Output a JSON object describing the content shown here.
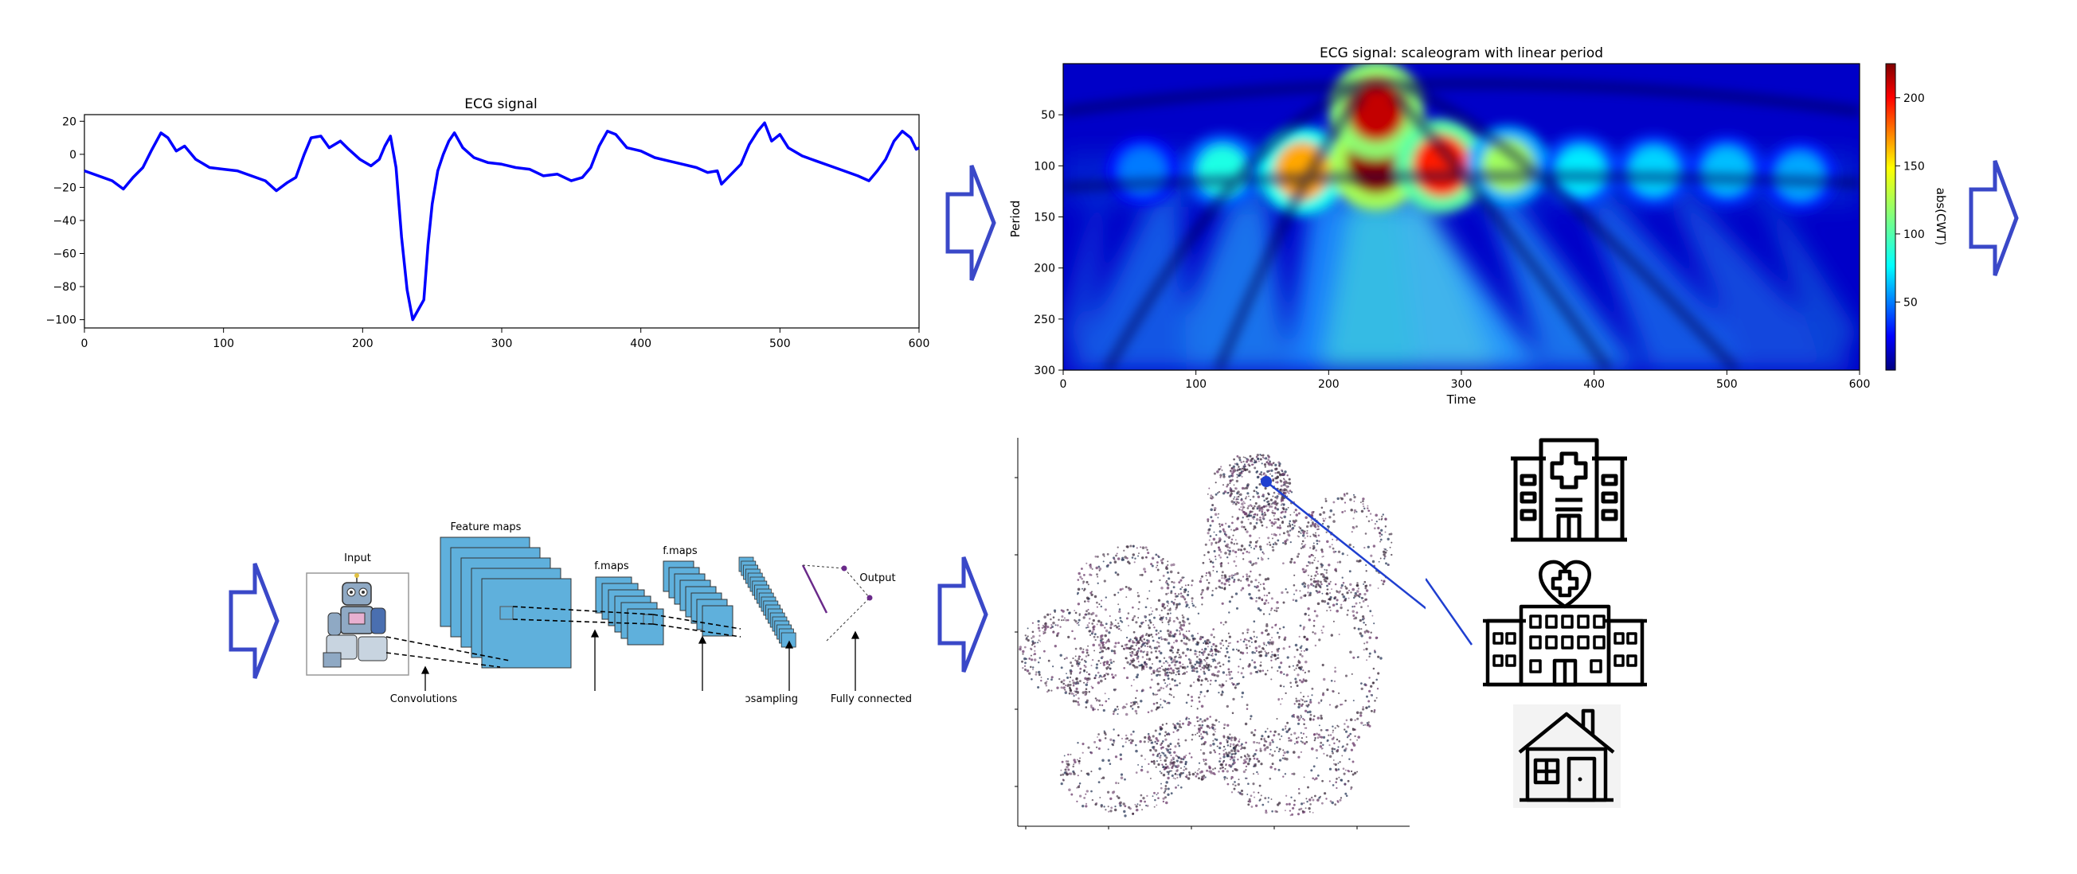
{
  "ecg_chart": {
    "chart_data": {
      "type": "line",
      "title": "ECG signal",
      "xlabel": "",
      "ylabel": "",
      "xlim": [
        0,
        600
      ],
      "ylim": [
        -105,
        24
      ],
      "xticks": [
        0,
        100,
        200,
        300,
        400,
        500,
        600
      ],
      "yticks": [
        20,
        0,
        -20,
        -40,
        -60,
        -80,
        -100
      ],
      "series": [
        {
          "color": "#0000ff",
          "points": [
            [
              0,
              -10
            ],
            [
              10,
              -13
            ],
            [
              20,
              -16
            ],
            [
              28,
              -21
            ],
            [
              35,
              -14
            ],
            [
              42,
              -8
            ],
            [
              48,
              2
            ],
            [
              55,
              13
            ],
            [
              60,
              10
            ],
            [
              66,
              2
            ],
            [
              72,
              5
            ],
            [
              80,
              -3
            ],
            [
              90,
              -8
            ],
            [
              100,
              -9
            ],
            [
              110,
              -10
            ],
            [
              120,
              -13
            ],
            [
              130,
              -16
            ],
            [
              138,
              -22
            ],
            [
              146,
              -17
            ],
            [
              152,
              -14
            ],
            [
              158,
              0
            ],
            [
              163,
              10
            ],
            [
              170,
              11
            ],
            [
              176,
              4
            ],
            [
              184,
              8
            ],
            [
              190,
              3
            ],
            [
              198,
              -3
            ],
            [
              206,
              -7
            ],
            [
              212,
              -3
            ],
            [
              216,
              5
            ],
            [
              220,
              11
            ],
            [
              224,
              -8
            ],
            [
              228,
              -50
            ],
            [
              232,
              -82
            ],
            [
              236,
              -100
            ],
            [
              240,
              -94
            ],
            [
              244,
              -88
            ],
            [
              247,
              -55
            ],
            [
              250,
              -30
            ],
            [
              254,
              -10
            ],
            [
              258,
              0
            ],
            [
              262,
              8
            ],
            [
              266,
              13
            ],
            [
              272,
              4
            ],
            [
              280,
              -2
            ],
            [
              290,
              -5
            ],
            [
              300,
              -6
            ],
            [
              310,
              -8
            ],
            [
              320,
              -9
            ],
            [
              330,
              -13
            ],
            [
              340,
              -12
            ],
            [
              350,
              -16
            ],
            [
              358,
              -14
            ],
            [
              364,
              -8
            ],
            [
              370,
              5
            ],
            [
              376,
              14
            ],
            [
              382,
              12
            ],
            [
              390,
              4
            ],
            [
              400,
              2
            ],
            [
              410,
              -2
            ],
            [
              420,
              -4
            ],
            [
              430,
              -6
            ],
            [
              440,
              -8
            ],
            [
              448,
              -11
            ],
            [
              455,
              -10
            ],
            [
              458,
              -18
            ],
            [
              465,
              -12
            ],
            [
              472,
              -6
            ],
            [
              478,
              6
            ],
            [
              484,
              14
            ],
            [
              489,
              19
            ],
            [
              494,
              8
            ],
            [
              500,
              12
            ],
            [
              506,
              4
            ],
            [
              516,
              -1
            ],
            [
              526,
              -4
            ],
            [
              536,
              -7
            ],
            [
              546,
              -10
            ],
            [
              556,
              -13
            ],
            [
              564,
              -16
            ],
            [
              570,
              -10
            ],
            [
              576,
              -3
            ],
            [
              582,
              8
            ],
            [
              588,
              14
            ],
            [
              594,
              10
            ],
            [
              598,
              3
            ],
            [
              600,
              4
            ]
          ]
        }
      ]
    }
  },
  "scaleogram_chart": {
    "chart_data": {
      "type": "heatmap",
      "title": "ECG signal: scaleogram with linear period",
      "xlabel": "Time",
      "ylabel": "Period",
      "colorbar_label": "abs(CWT)",
      "colormap": "jet",
      "xlim": [
        0,
        600
      ],
      "ylim": [
        300,
        0
      ],
      "xticks": [
        0,
        100,
        200,
        300,
        400,
        500,
        600
      ],
      "yticks": [
        50,
        100,
        150,
        200,
        250,
        300
      ],
      "colorbar_range": [
        0,
        225
      ],
      "colorbar_ticks": [
        50,
        100,
        150,
        200
      ],
      "hotspots": [
        {
          "time": 120,
          "period": 105,
          "value": 90
        },
        {
          "time": 180,
          "period": 105,
          "value": 160
        },
        {
          "time": 236,
          "period": 95,
          "value": 220
        },
        {
          "time": 236,
          "period": 45,
          "value": 210
        },
        {
          "time": 285,
          "period": 100,
          "value": 190
        },
        {
          "time": 335,
          "period": 100,
          "value": 120
        },
        {
          "time": 390,
          "period": 105,
          "value": 80
        },
        {
          "time": 445,
          "period": 105,
          "value": 75
        },
        {
          "time": 500,
          "period": 105,
          "value": 70
        },
        {
          "time": 555,
          "period": 110,
          "value": 65
        },
        {
          "time": 60,
          "period": 105,
          "value": 55
        }
      ]
    }
  },
  "cnn_diagram": {
    "labels": {
      "input": "Input",
      "feature_maps": "Feature maps",
      "fmaps_1": "f.maps",
      "fmaps_2": "f.maps",
      "output": "Output",
      "convolutions": "Convolutions",
      "subsampling": "ɔsampling",
      "fully_connected": "Fully connected"
    }
  },
  "scatter_plot": {
    "point_color": "#3a2a3a",
    "line_color": "#1f3fd0"
  },
  "icons": [
    "hospital-icon",
    "heart-hospital-icon",
    "house-icon"
  ],
  "arrow_color": "#3a48c8"
}
